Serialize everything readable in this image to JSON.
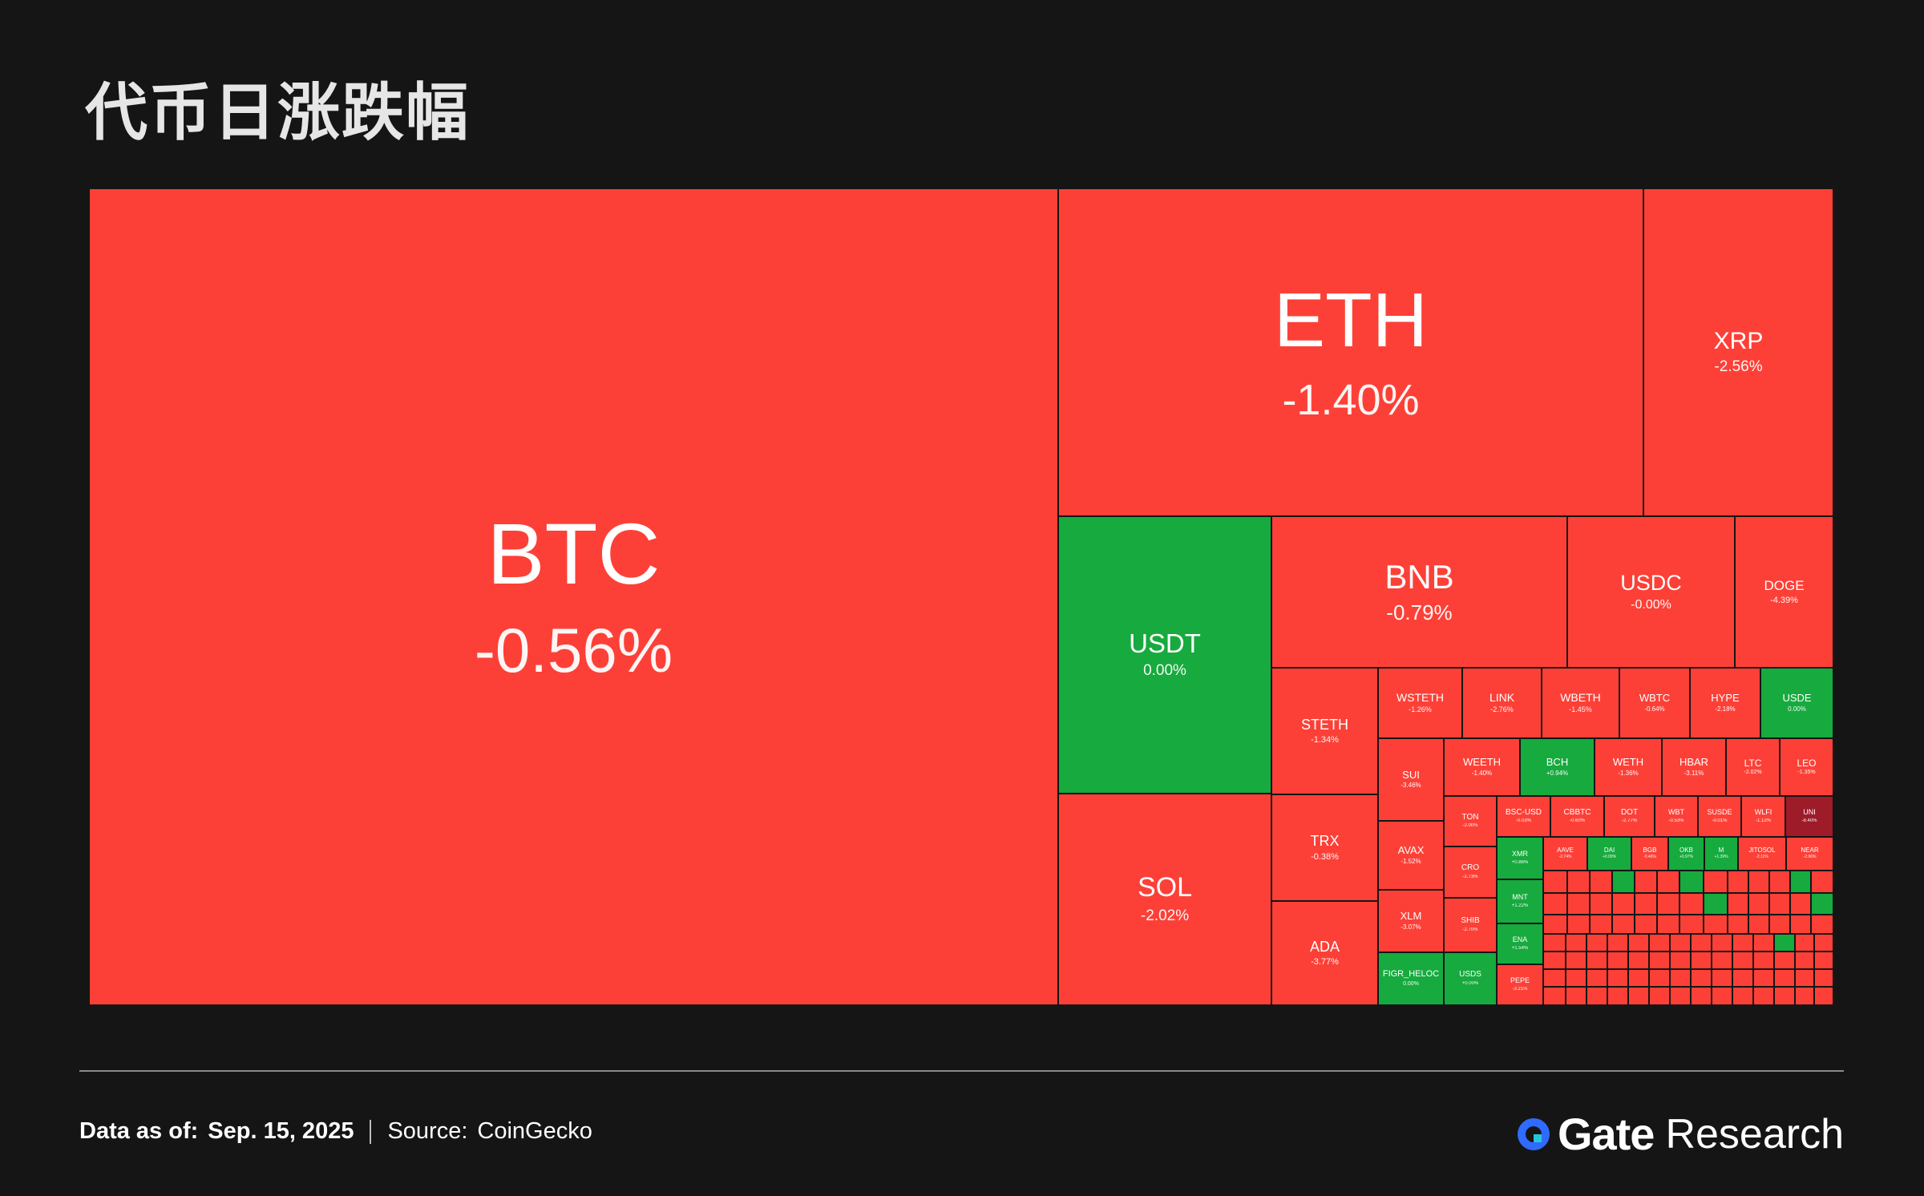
{
  "title": "代币日涨跌幅",
  "footer": {
    "data_as_of_label": "Data as of:",
    "date": "Sep. 15, 2025",
    "source_label": "Source:",
    "source": "CoinGecko"
  },
  "brand": {
    "name": "Gate",
    "suffix": "Research",
    "logo_color": "#2f6bff"
  },
  "colors": {
    "down": "#fd4037",
    "up": "#17aa3e",
    "strong_down": "#9e1b2a",
    "background": "#151515"
  },
  "chart_data": {
    "type": "heatmap",
    "title": "代币日涨跌幅",
    "tiles": [
      {
        "symbol": "BTC",
        "change": "-0.56%",
        "value": -0.56
      },
      {
        "symbol": "ETH",
        "change": "-1.40%",
        "value": -1.4
      },
      {
        "symbol": "XRP",
        "change": "-2.56%",
        "value": -2.56
      },
      {
        "symbol": "USDT",
        "change": "0.00%",
        "value": 0.0
      },
      {
        "symbol": "BNB",
        "change": "-0.79%",
        "value": -0.79
      },
      {
        "symbol": "USDC",
        "change": "-0.00%",
        "value": -0.0
      },
      {
        "symbol": "DOGE",
        "change": "-4.39%",
        "value": -4.39
      },
      {
        "symbol": "SOL",
        "change": "-2.02%",
        "value": -2.02
      },
      {
        "symbol": "STETH",
        "change": "-1.34%",
        "value": -1.34
      },
      {
        "symbol": "TRX",
        "change": "-0.38%",
        "value": -0.38
      },
      {
        "symbol": "ADA",
        "change": "-3.77%",
        "value": -3.77
      },
      {
        "symbol": "WSTETH",
        "change": "-1.26%",
        "value": -1.26
      },
      {
        "symbol": "LINK",
        "change": "-2.76%",
        "value": -2.76
      },
      {
        "symbol": "WBETH",
        "change": "-1.45%",
        "value": -1.45
      },
      {
        "symbol": "WBTC",
        "change": "-0.64%",
        "value": -0.64
      },
      {
        "symbol": "HYPE",
        "change": "-2.18%",
        "value": -2.18
      },
      {
        "symbol": "USDE",
        "change": "0.00%",
        "value": 0.0
      },
      {
        "symbol": "SUI",
        "change": "-3.46%",
        "value": -3.46
      },
      {
        "symbol": "WEETH",
        "change": "-1.40%",
        "value": -1.4
      },
      {
        "symbol": "BCH",
        "change": "+0.94%",
        "value": 0.94
      },
      {
        "symbol": "WETH",
        "change": "-1.36%",
        "value": -1.36
      },
      {
        "symbol": "HBAR",
        "change": "-3.11%",
        "value": -3.11
      },
      {
        "symbol": "LTC",
        "change": "-2.02%",
        "value": -2.02
      },
      {
        "symbol": "LEO",
        "change": "-1.35%",
        "value": -1.35
      },
      {
        "symbol": "AVAX",
        "change": "-1.52%",
        "value": -1.52
      },
      {
        "symbol": "XLM",
        "change": "-3.07%",
        "value": -3.07
      },
      {
        "symbol": "FIGR_HELOC",
        "change": "0.00%",
        "value": 0.0
      },
      {
        "symbol": "TON",
        "change": "-2.00%",
        "value": -2.0
      },
      {
        "symbol": "CRO",
        "change": "-2.73%",
        "value": -2.73
      },
      {
        "symbol": "SHIB",
        "change": "-2.70%",
        "value": -2.7
      },
      {
        "symbol": "USDS",
        "change": "+0.00%",
        "value": 0.0
      },
      {
        "symbol": "BSC-USD",
        "change": "-0.03%",
        "value": -0.03
      },
      {
        "symbol": "CBBTC",
        "change": "-0.60%",
        "value": -0.6
      },
      {
        "symbol": "DOT",
        "change": "-2.77%",
        "value": -2.77
      },
      {
        "symbol": "WBT",
        "change": "-0.53%",
        "value": -0.53
      },
      {
        "symbol": "SUSDE",
        "change": "-0.01%",
        "value": -0.01
      },
      {
        "symbol": "WLFI",
        "change": "-1.12%",
        "value": -1.12
      },
      {
        "symbol": "UNI",
        "change": "-8.40%",
        "value": -8.4
      },
      {
        "symbol": "XMR",
        "change": "+0.86%",
        "value": 0.86
      },
      {
        "symbol": "MNT",
        "change": "+1.22%",
        "value": 1.22
      },
      {
        "symbol": "ENA",
        "change": "+1.54%",
        "value": 1.54
      },
      {
        "symbol": "PEPE",
        "change": "-3.21%",
        "value": -3.21
      },
      {
        "symbol": "AAVE",
        "change": "-2.74%",
        "value": -2.74
      },
      {
        "symbol": "DAI",
        "change": "+0.00%",
        "value": 0.0
      },
      {
        "symbol": "BGB",
        "change": "-0.48%",
        "value": -0.48
      },
      {
        "symbol": "OKB",
        "change": "+0.97%",
        "value": 0.97
      },
      {
        "symbol": "M",
        "change": "+1.39%",
        "value": 1.39
      },
      {
        "symbol": "JITOSOL",
        "change": "-2.11%",
        "value": -2.11
      },
      {
        "symbol": "NEAR",
        "change": "-2.96%",
        "value": -2.96
      }
    ]
  }
}
